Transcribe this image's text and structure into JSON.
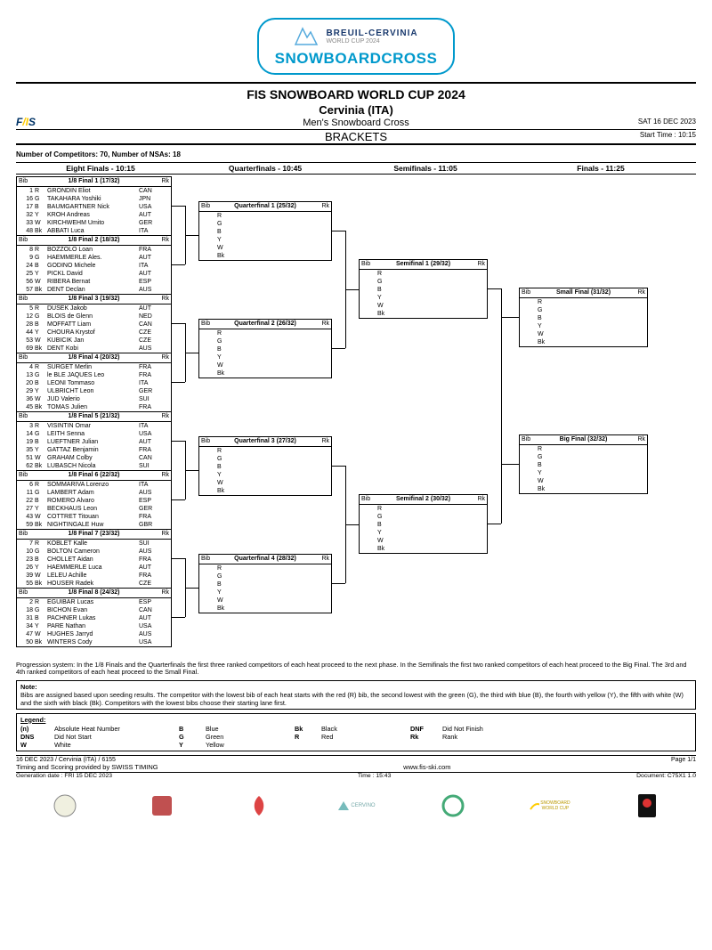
{
  "logo": {
    "line1": "BREUIL-CERVINIA",
    "line2": "WORLD CUP 2024",
    "big": "SNOWBOARDCROSS"
  },
  "header": {
    "title": "FIS SNOWBOARD WORLD CUP 2024",
    "location": "Cervinia (ITA)",
    "event": "Men's Snowboard Cross",
    "brackets": "BRACKETS",
    "date": "SAT 16 DEC 2023",
    "start": "Start Time : 10:15",
    "fis": "F/IS"
  },
  "competitors": "Number of Competitors: 70, Number of NSAs: 18",
  "rounds": {
    "r1": "Eight Finals - 10:15",
    "r2": "Quarterfinals - 10:45",
    "r3": "Semifinals - 11:05",
    "r4": "Finals - 11:25"
  },
  "colLabels": {
    "bib": "Bib",
    "rk": "Rk"
  },
  "colors": [
    "R",
    "G",
    "B",
    "Y",
    "W",
    "Bk"
  ],
  "eighth": [
    {
      "title": "1/8 Final 1 (17/32)",
      "rows": [
        {
          "bib": "1",
          "c": "R",
          "name": "GRONDIN Eliot",
          "nat": "CAN"
        },
        {
          "bib": "16",
          "c": "G",
          "name": "TAKAHARA Yoshiki",
          "nat": "JPN"
        },
        {
          "bib": "17",
          "c": "B",
          "name": "BAUMGARTNER Nick",
          "nat": "USA"
        },
        {
          "bib": "32",
          "c": "Y",
          "name": "KROH Andreas",
          "nat": "AUT"
        },
        {
          "bib": "33",
          "c": "W",
          "name": "KIRCHWEHM Umito",
          "nat": "GER"
        },
        {
          "bib": "48",
          "c": "Bk",
          "name": "ABBATI Luca",
          "nat": "ITA"
        }
      ]
    },
    {
      "title": "1/8 Final 2 (18/32)",
      "rows": [
        {
          "bib": "8",
          "c": "R",
          "name": "BOZZOLO Loan",
          "nat": "FRA"
        },
        {
          "bib": "9",
          "c": "G",
          "name": "HAEMMERLE Ales.",
          "nat": "AUT"
        },
        {
          "bib": "24",
          "c": "B",
          "name": "GODINO Michele",
          "nat": "ITA"
        },
        {
          "bib": "25",
          "c": "Y",
          "name": "PICKL David",
          "nat": "AUT"
        },
        {
          "bib": "56",
          "c": "W",
          "name": "RIBERA Bernat",
          "nat": "ESP"
        },
        {
          "bib": "57",
          "c": "Bk",
          "name": "DENT Declan",
          "nat": "AUS"
        }
      ]
    },
    {
      "title": "1/8 Final 3 (19/32)",
      "rows": [
        {
          "bib": "5",
          "c": "R",
          "name": "DUSEK Jakob",
          "nat": "AUT"
        },
        {
          "bib": "12",
          "c": "G",
          "name": "BLOIS de Glenn",
          "nat": "NED"
        },
        {
          "bib": "28",
          "c": "B",
          "name": "MOFFATT Liam",
          "nat": "CAN"
        },
        {
          "bib": "44",
          "c": "Y",
          "name": "CHOURA Krystof",
          "nat": "CZE"
        },
        {
          "bib": "53",
          "c": "W",
          "name": "KUBICIK Jan",
          "nat": "CZE"
        },
        {
          "bib": "69",
          "c": "Bk",
          "name": "DENT Kobi",
          "nat": "AUS"
        }
      ]
    },
    {
      "title": "1/8 Final 4 (20/32)",
      "rows": [
        {
          "bib": "4",
          "c": "R",
          "name": "SURGET Merlin",
          "nat": "FRA"
        },
        {
          "bib": "13",
          "c": "G",
          "name": "le BLE JAQUES Leo",
          "nat": "FRA"
        },
        {
          "bib": "20",
          "c": "B",
          "name": "LEONI Tommaso",
          "nat": "ITA"
        },
        {
          "bib": "29",
          "c": "Y",
          "name": "ULBRICHT Leon",
          "nat": "GER"
        },
        {
          "bib": "36",
          "c": "W",
          "name": "JUD Valerio",
          "nat": "SUI"
        },
        {
          "bib": "45",
          "c": "Bk",
          "name": "TOMAS Julien",
          "nat": "FRA"
        }
      ]
    },
    {
      "title": "1/8 Final 5 (21/32)",
      "rows": [
        {
          "bib": "3",
          "c": "R",
          "name": "VISINTIN Omar",
          "nat": "ITA"
        },
        {
          "bib": "14",
          "c": "G",
          "name": "LEITH Senna",
          "nat": "USA"
        },
        {
          "bib": "19",
          "c": "B",
          "name": "LUEFTNER Julian",
          "nat": "AUT"
        },
        {
          "bib": "35",
          "c": "Y",
          "name": "GATTAZ Benjamin",
          "nat": "FRA"
        },
        {
          "bib": "51",
          "c": "W",
          "name": "GRAHAM Colby",
          "nat": "CAN"
        },
        {
          "bib": "62",
          "c": "Bk",
          "name": "LUBASCH Nicola",
          "nat": "SUI"
        }
      ]
    },
    {
      "title": "1/8 Final 6 (22/32)",
      "rows": [
        {
          "bib": "6",
          "c": "R",
          "name": "SOMMARIVA Lorenzo",
          "nat": "ITA"
        },
        {
          "bib": "11",
          "c": "G",
          "name": "LAMBERT Adam",
          "nat": "AUS"
        },
        {
          "bib": "22",
          "c": "B",
          "name": "ROMERO Alvaro",
          "nat": "ESP"
        },
        {
          "bib": "27",
          "c": "Y",
          "name": "BECKHAUS Leon",
          "nat": "GER"
        },
        {
          "bib": "43",
          "c": "W",
          "name": "COTTRET Titouan",
          "nat": "FRA"
        },
        {
          "bib": "59",
          "c": "Bk",
          "name": "NIGHTINGALE Huw",
          "nat": "GBR"
        }
      ]
    },
    {
      "title": "1/8 Final 7 (23/32)",
      "rows": [
        {
          "bib": "7",
          "c": "R",
          "name": "KOBLET Kalle",
          "nat": "SUI"
        },
        {
          "bib": "10",
          "c": "G",
          "name": "BOLTON Cameron",
          "nat": "AUS"
        },
        {
          "bib": "23",
          "c": "B",
          "name": "CHOLLET Aidan",
          "nat": "FRA"
        },
        {
          "bib": "26",
          "c": "Y",
          "name": "HAEMMERLE Luca",
          "nat": "AUT"
        },
        {
          "bib": "39",
          "c": "W",
          "name": "LELEU Achille",
          "nat": "FRA"
        },
        {
          "bib": "55",
          "c": "Bk",
          "name": "HOUSER Radek",
          "nat": "CZE"
        }
      ]
    },
    {
      "title": "1/8 Final 8 (24/32)",
      "rows": [
        {
          "bib": "2",
          "c": "R",
          "name": "EGUIBAR Lucas",
          "nat": "ESP"
        },
        {
          "bib": "18",
          "c": "G",
          "name": "BICHON Evan",
          "nat": "CAN"
        },
        {
          "bib": "31",
          "c": "B",
          "name": "PACHNER Lukas",
          "nat": "AUT"
        },
        {
          "bib": "34",
          "c": "Y",
          "name": "PARE Nathan",
          "nat": "USA"
        },
        {
          "bib": "47",
          "c": "W",
          "name": "HUGHES Jarryd",
          "nat": "AUS"
        },
        {
          "bib": "50",
          "c": "Bk",
          "name": "WINTERS Cody",
          "nat": "USA"
        }
      ]
    }
  ],
  "qf": [
    {
      "title": "Quarterfinal 1 (25/32)"
    },
    {
      "title": "Quarterfinal 2 (26/32)"
    },
    {
      "title": "Quarterfinal 3 (27/32)"
    },
    {
      "title": "Quarterfinal 4 (28/32)"
    }
  ],
  "sf": [
    {
      "title": "Semifinal 1 (29/32)"
    },
    {
      "title": "Semifinal 2 (30/32)"
    }
  ],
  "fn": [
    {
      "title": "Small Final (31/32)"
    },
    {
      "title": "Big Final (32/32)"
    }
  ],
  "progression": "Progression system: In the 1/8 Finals and the Quarterfinals the first three ranked competitors of each heat proceed to the next phase. In the Semifinals the first two ranked competitors of each heat proceed to the Big Final. The 3rd and 4th ranked competitors of each heat proceed to the Small Final.",
  "note": {
    "title": "Note:",
    "text": "Bibs are assigned based upon seeding results. The competitor with the lowest bib of each heat starts with the red (R) bib, the second lowest with the green (G), the third with blue (B), the fourth with yellow (Y), the fifth with white (W) and the sixth with black (Bk). Competitors with the lowest bibs choose their starting lane first."
  },
  "legend": {
    "title": "Legend:",
    "items": [
      {
        "k": "(n)",
        "v": "Absolute Heat Number"
      },
      {
        "k": "B",
        "v": "Blue"
      },
      {
        "k": "Bk",
        "v": "Black"
      },
      {
        "k": "DNF",
        "v": "Did Not Finish"
      },
      {
        "k": "DNS",
        "v": "Did Not Start"
      },
      {
        "k": "G",
        "v": "Green"
      },
      {
        "k": "R",
        "v": "Red"
      },
      {
        "k": "Rk",
        "v": "Rank"
      },
      {
        "k": "W",
        "v": "White"
      },
      {
        "k": "Y",
        "v": "Yellow"
      },
      {
        "k": "",
        "v": ""
      },
      {
        "k": "",
        "v": ""
      }
    ]
  },
  "footer": {
    "l1_left": "16 DEC 2023 / Cervinia  (ITA) / 6155",
    "l1_right": "Page 1/1",
    "l2_left": "Timing and Scoring provided by SWISS TIMING",
    "l2_center": "www.fis-ski.com",
    "l3_left": "Generation date : FRI 15 DEC 2023",
    "l3_center": "Time : 15:43",
    "l3_right": "Document: C75X1 1.0"
  },
  "sponsors": [
    "",
    "",
    "",
    "CERVINO",
    "",
    "SNOWBOARD WORLD CUP",
    ""
  ]
}
